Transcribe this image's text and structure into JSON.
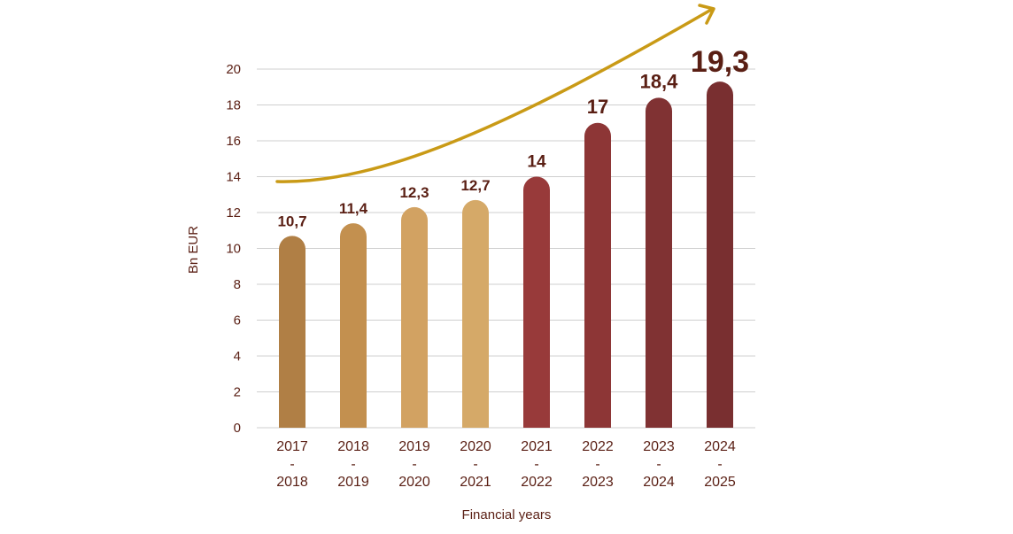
{
  "chart_data": {
    "type": "bar",
    "title": "",
    "xlabel": "Financial years",
    "ylabel": "Bn EUR",
    "ylim": [
      0,
      20
    ],
    "yticks": [
      0,
      2,
      4,
      6,
      8,
      10,
      12,
      14,
      16,
      18,
      20
    ],
    "grid": true,
    "categories": [
      [
        "2017",
        "-",
        "2018"
      ],
      [
        "2018",
        "-",
        "2019"
      ],
      [
        "2019",
        "-",
        "2020"
      ],
      [
        "2020",
        "-",
        "2021"
      ],
      [
        "2021",
        "-",
        "2022"
      ],
      [
        "2022",
        "-",
        "2023"
      ],
      [
        "2023",
        "-",
        "2024"
      ],
      [
        "2024",
        "-",
        "2025"
      ]
    ],
    "values": [
      10.7,
      11.4,
      12.3,
      12.7,
      14,
      17,
      18.4,
      19.3
    ],
    "value_labels": [
      "10,7",
      "11,4",
      "12,3",
      "12,7",
      "14",
      "17",
      "18,4",
      "19,3"
    ],
    "bar_colors": [
      "#b07f45",
      "#c3904f",
      "#d2a262",
      "#d5a968",
      "#983a3a",
      "#8d3636",
      "#803233",
      "#792f30"
    ],
    "trend_arrow": {
      "color": "#c99a16",
      "direction": "up"
    },
    "text_color": "#5a1f14",
    "grid_color": "#cfcfcf"
  }
}
